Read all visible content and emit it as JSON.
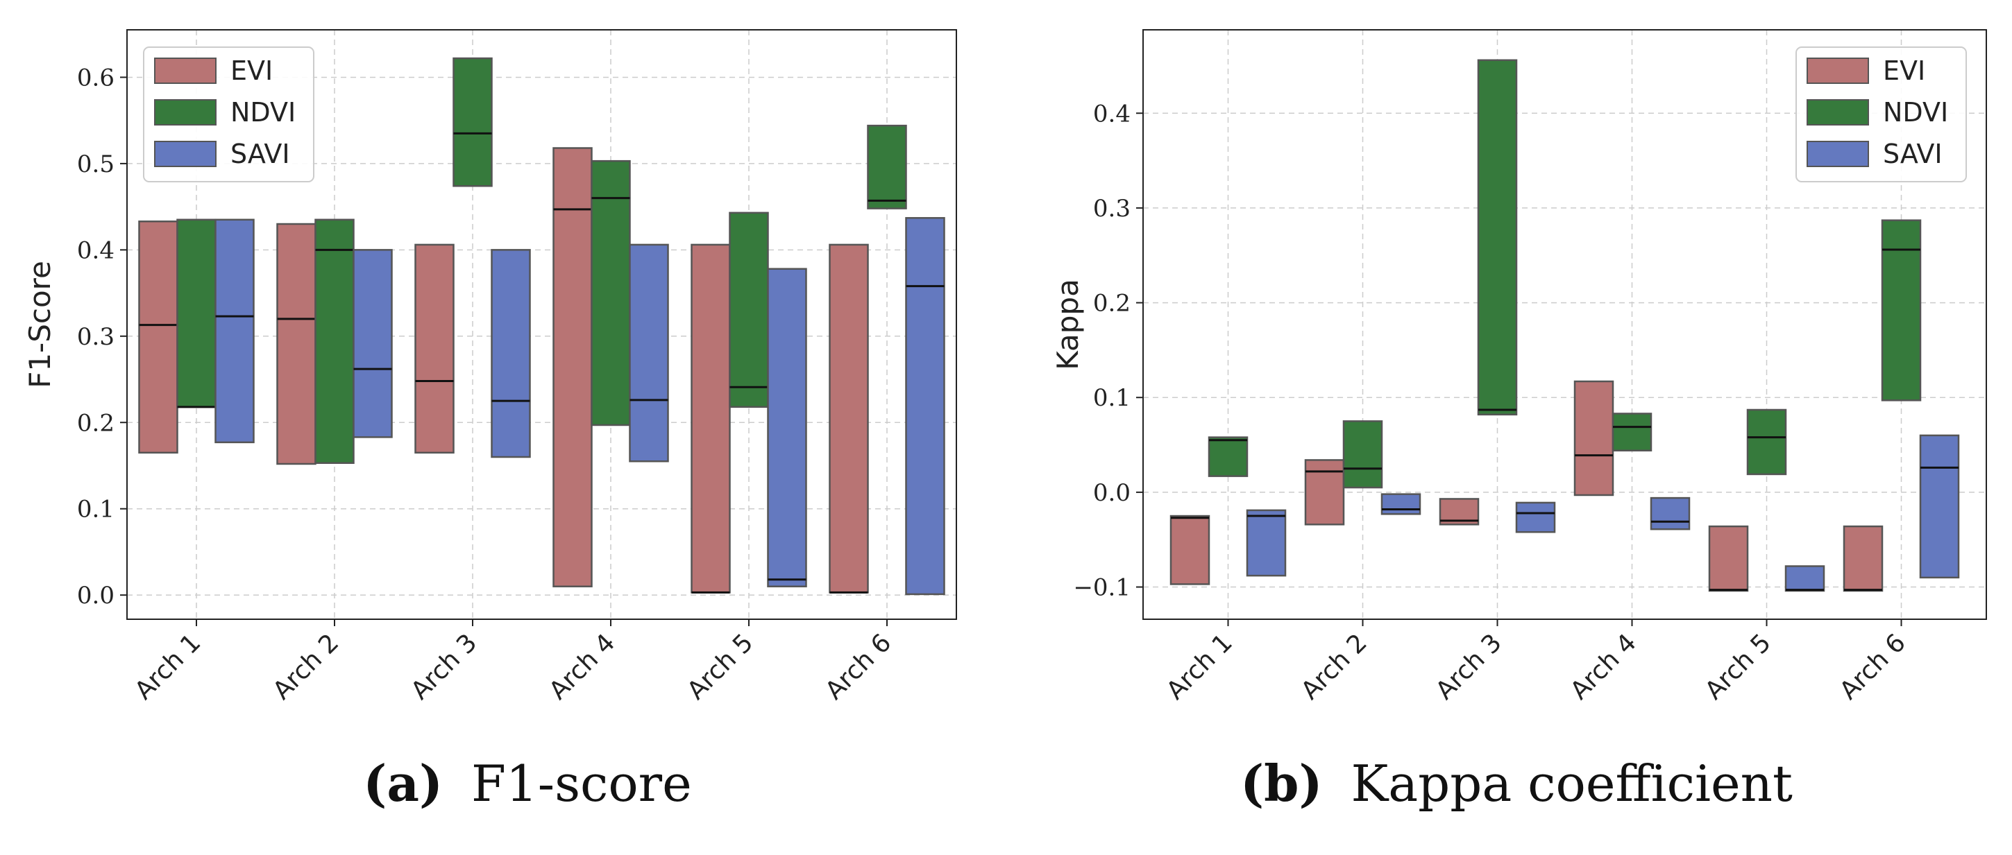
{
  "colors": {
    "EVI": "#b87474",
    "NDVI": "#367a3c",
    "SAVI": "#6479bf",
    "edge": "#555555",
    "median": "#111111",
    "grid": "#cccccc"
  },
  "chart_data": [
    {
      "type": "box",
      "caption_letter": "(a)",
      "caption_text": "F1-score",
      "ylabel": "F1-Score",
      "xlabel": "",
      "ylim": [
        -0.028,
        0.655
      ],
      "yticks": [
        "0.0",
        "0.1",
        "0.2",
        "0.3",
        "0.4",
        "0.5",
        "0.6"
      ],
      "yticks_values": [
        0.0,
        0.1,
        0.2,
        0.3,
        0.4,
        0.5,
        0.6
      ],
      "grid": true,
      "legend_position": "top-left",
      "categories": [
        "Arch 1",
        "Arch 2",
        "Arch 3",
        "Arch 4",
        "Arch 5",
        "Arch 6"
      ],
      "series": [
        {
          "name": "EVI",
          "boxes": [
            {
              "low": 0.165,
              "high": 0.433,
              "median": 0.313
            },
            {
              "low": 0.152,
              "high": 0.43,
              "median": 0.32
            },
            {
              "low": 0.165,
              "high": 0.406,
              "median": 0.248
            },
            {
              "low": 0.01,
              "high": 0.518,
              "median": 0.447
            },
            {
              "low": 0.003,
              "high": 0.406,
              "median": 0.003
            },
            {
              "low": 0.003,
              "high": 0.406,
              "median": 0.003
            }
          ]
        },
        {
          "name": "NDVI",
          "boxes": [
            {
              "low": 0.218,
              "high": 0.435,
              "median": 0.218
            },
            {
              "low": 0.153,
              "high": 0.435,
              "median": 0.4
            },
            {
              "low": 0.474,
              "high": 0.622,
              "median": 0.535
            },
            {
              "low": 0.197,
              "high": 0.503,
              "median": 0.46
            },
            {
              "low": 0.218,
              "high": 0.443,
              "median": 0.241
            },
            {
              "low": 0.448,
              "high": 0.544,
              "median": 0.457
            }
          ]
        },
        {
          "name": "SAVI",
          "boxes": [
            {
              "low": 0.177,
              "high": 0.435,
              "median": 0.323
            },
            {
              "low": 0.183,
              "high": 0.4,
              "median": 0.262
            },
            {
              "low": 0.16,
              "high": 0.4,
              "median": 0.225
            },
            {
              "low": 0.155,
              "high": 0.406,
              "median": 0.226
            },
            {
              "low": 0.01,
              "high": 0.378,
              "median": 0.018
            },
            {
              "low": 0.001,
              "high": 0.437,
              "median": 0.358
            }
          ]
        }
      ]
    },
    {
      "type": "box",
      "caption_letter": "(b)",
      "caption_text": "Kappa coefficient",
      "ylabel": "Kappa",
      "xlabel": "",
      "ylim": [
        -0.134,
        0.488
      ],
      "yticks": [
        "−0.1",
        "0.0",
        "0.1",
        "0.2",
        "0.3",
        "0.4"
      ],
      "yticks_values": [
        -0.1,
        0.0,
        0.1,
        0.2,
        0.3,
        0.4
      ],
      "grid": true,
      "legend_position": "top-right",
      "categories": [
        "Arch 1",
        "Arch 2",
        "Arch 3",
        "Arch 4",
        "Arch 5",
        "Arch 6"
      ],
      "series": [
        {
          "name": "EVI",
          "boxes": [
            {
              "low": -0.097,
              "high": -0.025,
              "median": -0.027
            },
            {
              "low": -0.034,
              "high": 0.034,
              "median": 0.022
            },
            {
              "low": -0.034,
              "high": -0.007,
              "median": -0.03
            },
            {
              "low": -0.003,
              "high": 0.117,
              "median": 0.039
            },
            {
              "low": -0.104,
              "high": -0.036,
              "median": -0.103
            },
            {
              "low": -0.104,
              "high": -0.036,
              "median": -0.103
            }
          ]
        },
        {
          "name": "NDVI",
          "boxes": [
            {
              "low": 0.017,
              "high": 0.058,
              "median": 0.055
            },
            {
              "low": 0.005,
              "high": 0.075,
              "median": 0.025
            },
            {
              "low": 0.082,
              "high": 0.456,
              "median": 0.087
            },
            {
              "low": 0.044,
              "high": 0.083,
              "median": 0.069
            },
            {
              "low": 0.019,
              "high": 0.087,
              "median": 0.058
            },
            {
              "low": 0.097,
              "high": 0.287,
              "median": 0.256
            }
          ]
        },
        {
          "name": "SAVI",
          "boxes": [
            {
              "low": -0.088,
              "high": -0.019,
              "median": -0.025
            },
            {
              "low": -0.023,
              "high": -0.002,
              "median": -0.018
            },
            {
              "low": -0.042,
              "high": -0.011,
              "median": -0.022
            },
            {
              "low": -0.039,
              "high": -0.006,
              "median": -0.031
            },
            {
              "low": -0.104,
              "high": -0.078,
              "median": -0.103
            },
            {
              "low": -0.09,
              "high": 0.06,
              "median": 0.026
            }
          ]
        }
      ]
    }
  ]
}
